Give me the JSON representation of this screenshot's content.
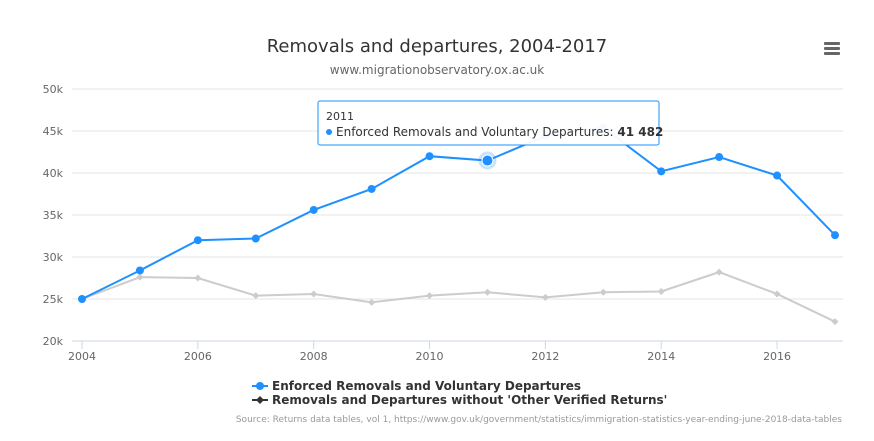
{
  "chart": {
    "title": "Removals and departures, 2004-2017",
    "subtitle": "www.migrationobservatory.ox.ac.uk",
    "source": "Source: Returns data tables, vol 1, https://www.gov.uk/government/statistics/immigration-statistics-year-ending-june-2018-data-tables"
  },
  "menu": {
    "icon": "hamburger-menu-icon"
  },
  "tooltip": {
    "year": "2011",
    "series_label": "Enforced Removals and Voluntary Departures: ",
    "value_text": "41 482"
  },
  "legend": {
    "items": [
      {
        "label": "Enforced Removals and Voluntary Departures",
        "color": "#1e90ff"
      },
      {
        "label": "Removals and Departures without 'Other Verified Returns'",
        "color": "#333333"
      }
    ]
  },
  "colors": {
    "series1": "#1e90ff",
    "series2": "#cccccc",
    "grid": "#e6e6e6",
    "axis": "#ccd6eb"
  },
  "chart_data": {
    "type": "line",
    "x": [
      2004,
      2005,
      2006,
      2007,
      2008,
      2009,
      2010,
      2011,
      2012,
      2013,
      2014,
      2015,
      2016,
      2017
    ],
    "xticks": [
      2004,
      2006,
      2008,
      2010,
      2012,
      2014,
      2016
    ],
    "ylim": [
      20000,
      50000
    ],
    "yticks": [
      "20k",
      "25k",
      "30k",
      "35k",
      "40k",
      "45k",
      "50k"
    ],
    "ytick_values": [
      20000,
      25000,
      30000,
      35000,
      40000,
      45000,
      50000
    ],
    "grid": true,
    "legend_position": "bottom",
    "highlight_index": 7,
    "series": [
      {
        "name": "Enforced Removals and Voluntary Departures",
        "values": [
          25000,
          28400,
          32000,
          32200,
          35600,
          38100,
          42000,
          41482,
          44400,
          45400,
          40200,
          41900,
          39700,
          32600
        ]
      },
      {
        "name": "Removals and Departures without 'Other Verified Returns'",
        "values": [
          25000,
          27600,
          27500,
          25400,
          25600,
          24600,
          25400,
          25800,
          25200,
          25800,
          25900,
          28200,
          25600,
          22300
        ]
      }
    ]
  }
}
